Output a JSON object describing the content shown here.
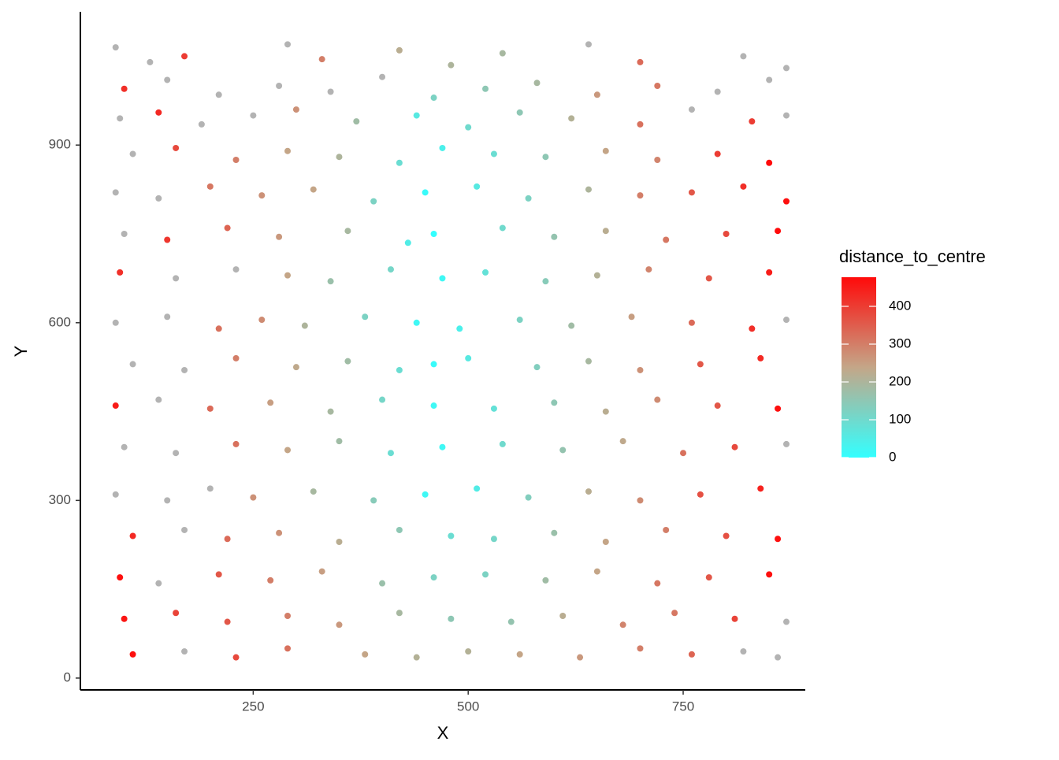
{
  "chart_data": {
    "type": "scatter",
    "x_label": "X",
    "y_label": "Y",
    "legend_title": "distance_to_centre",
    "xlim": [
      49,
      892
    ],
    "ylim": [
      -20,
      1125
    ],
    "xticks": [
      250,
      500,
      750
    ],
    "yticks": [
      0,
      300,
      600,
      900
    ],
    "grid": false,
    "legend_position": "right",
    "color_scale": {
      "colors": [
        "#33ffff",
        "#c4a688",
        "#ff0a0a"
      ],
      "limits": [
        0,
        477
      ],
      "na_color": "#b3b3b3",
      "ticks": [
        0,
        100,
        200,
        300,
        400
      ]
    },
    "x": [
      90,
      130,
      170,
      290,
      330,
      420,
      480,
      540,
      640,
      700,
      820,
      870,
      100,
      150,
      210,
      280,
      340,
      400,
      460,
      520,
      580,
      650,
      720,
      790,
      850,
      95,
      140,
      190,
      250,
      300,
      370,
      440,
      500,
      560,
      620,
      700,
      760,
      830,
      870,
      110,
      160,
      230,
      290,
      350,
      420,
      470,
      530,
      590,
      660,
      720,
      790,
      850,
      90,
      140,
      200,
      260,
      320,
      390,
      450,
      510,
      570,
      640,
      700,
      760,
      820,
      870,
      100,
      150,
      220,
      280,
      360,
      430,
      460,
      540,
      600,
      660,
      730,
      800,
      860,
      95,
      160,
      230,
      290,
      340,
      410,
      470,
      520,
      590,
      650,
      710,
      780,
      850,
      90,
      150,
      210,
      260,
      310,
      380,
      440,
      490,
      560,
      620,
      690,
      760,
      830,
      870,
      110,
      170,
      230,
      300,
      360,
      420,
      460,
      500,
      580,
      640,
      700,
      770,
      840,
      90,
      140,
      200,
      270,
      340,
      400,
      460,
      530,
      600,
      660,
      720,
      790,
      860,
      100,
      160,
      230,
      290,
      350,
      410,
      470,
      540,
      610,
      680,
      750,
      810,
      870,
      90,
      150,
      200,
      250,
      320,
      390,
      450,
      510,
      570,
      640,
      700,
      770,
      840,
      110,
      170,
      220,
      280,
      350,
      420,
      480,
      530,
      600,
      660,
      730,
      800,
      860,
      95,
      140,
      210,
      270,
      330,
      400,
      460,
      520,
      590,
      650,
      720,
      780,
      850,
      100,
      160,
      220,
      290,
      350,
      420,
      480,
      550,
      610,
      680,
      740,
      810,
      870,
      110,
      170,
      230,
      290,
      380,
      440,
      500,
      560,
      630,
      700,
      760,
      820,
      860
    ],
    "y": [
      1065,
      1040,
      1050,
      1070,
      1045,
      1060,
      1035,
      1055,
      1070,
      1040,
      1050,
      1030,
      995,
      1010,
      985,
      1000,
      990,
      1015,
      980,
      995,
      1005,
      985,
      1000,
      990,
      1010,
      945,
      955,
      935,
      950,
      960,
      940,
      950,
      930,
      955,
      945,
      935,
      960,
      940,
      950,
      885,
      895,
      875,
      890,
      880,
      870,
      895,
      885,
      880,
      890,
      875,
      885,
      870,
      820,
      810,
      830,
      815,
      825,
      805,
      820,
      830,
      810,
      825,
      815,
      820,
      830,
      805,
      750,
      740,
      760,
      745,
      755,
      735,
      750,
      760,
      745,
      755,
      740,
      750,
      755,
      685,
      675,
      690,
      680,
      670,
      690,
      675,
      685,
      670,
      680,
      690,
      675,
      685,
      600,
      610,
      590,
      605,
      595,
      610,
      600,
      590,
      605,
      595,
      610,
      600,
      590,
      605,
      530,
      520,
      540,
      525,
      535,
      520,
      530,
      540,
      525,
      535,
      520,
      530,
      540,
      460,
      470,
      455,
      465,
      450,
      470,
      460,
      455,
      465,
      450,
      470,
      460,
      455,
      390,
      380,
      395,
      385,
      400,
      380,
      390,
      395,
      385,
      400,
      380,
      390,
      395,
      310,
      300,
      320,
      305,
      315,
      300,
      310,
      320,
      305,
      315,
      300,
      310,
      320,
      240,
      250,
      235,
      245,
      230,
      250,
      240,
      235,
      245,
      230,
      250,
      240,
      235,
      170,
      160,
      175,
      165,
      180,
      160,
      170,
      175,
      165,
      180,
      160,
      170,
      175,
      100,
      110,
      95,
      105,
      90,
      110,
      100,
      95,
      105,
      90,
      110,
      100,
      95,
      40,
      45,
      35,
      50,
      40,
      35,
      45,
      40,
      35,
      50,
      40,
      45,
      35
    ],
    "values": [
      null,
      null,
      400,
      null,
      300,
      220,
      200,
      190,
      null,
      330,
      null,
      null,
      420,
      null,
      null,
      null,
      null,
      null,
      120,
      150,
      190,
      260,
      310,
      null,
      null,
      null,
      430,
      null,
      null,
      270,
      180,
      60,
      100,
      150,
      210,
      320,
      null,
      400,
      null,
      null,
      380,
      300,
      240,
      200,
      90,
      40,
      90,
      150,
      240,
      290,
      400,
      480,
      null,
      null,
      310,
      270,
      240,
      120,
      10,
      60,
      120,
      200,
      300,
      360,
      420,
      470,
      null,
      410,
      340,
      260,
      190,
      50,
      0,
      100,
      160,
      220,
      310,
      380,
      480,
      420,
      null,
      null,
      240,
      170,
      110,
      20,
      80,
      140,
      210,
      290,
      360,
      450,
      null,
      null,
      320,
      280,
      200,
      120,
      20,
      40,
      120,
      180,
      250,
      330,
      420,
      null,
      null,
      null,
      300,
      230,
      180,
      90,
      10,
      60,
      130,
      190,
      270,
      360,
      430,
      450,
      null,
      330,
      250,
      190,
      110,
      20,
      80,
      150,
      220,
      280,
      360,
      470,
      null,
      null,
      320,
      240,
      180,
      90,
      20,
      100,
      160,
      230,
      320,
      380,
      null,
      null,
      null,
      null,
      270,
      190,
      140,
      20,
      50,
      130,
      220,
      280,
      370,
      440,
      430,
      null,
      330,
      270,
      220,
      150,
      90,
      110,
      170,
      240,
      300,
      370,
      470,
      470,
      null,
      360,
      300,
      250,
      170,
      120,
      120,
      180,
      240,
      310,
      360,
      470,
      460,
      390,
      360,
      300,
      260,
      190,
      150,
      160,
      220,
      290,
      310,
      390,
      null,
      470,
      null,
      380,
      320,
      240,
      210,
      210,
      240,
      260,
      300,
      340,
      null,
      null
    ]
  }
}
